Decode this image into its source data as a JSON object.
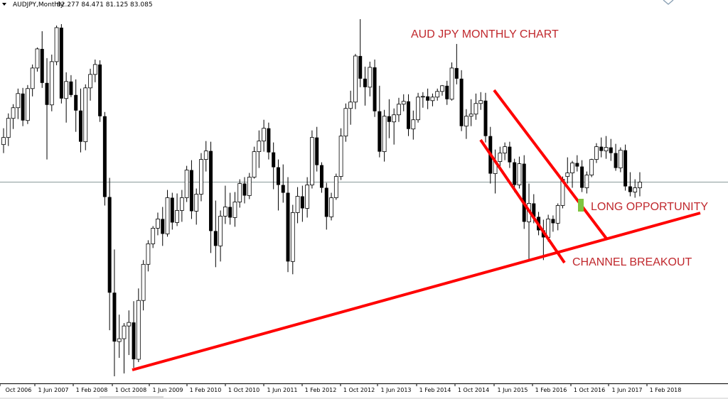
{
  "chart_data": {
    "type": "candlestick",
    "symbol_label": "AUDJPY,Monthly",
    "ohlc_label": "82.277 84.471 81.125 83.085",
    "title": "AUD JPY MONTHLY CHART",
    "annotations": [
      "LONG OPPORTUNITY",
      "CHANNEL BREAKOUT"
    ],
    "x_ticks": [
      "Oct 2006",
      "1 Jun 2007",
      "1 Feb 2008",
      "1 Oct 2008",
      "1 Jun 2009",
      "1 Feb 2010",
      "1 Oct 2010",
      "1 Jun 2011",
      "1 Feb 2012",
      "1 Oct 2012",
      "1 Jun 2013",
      "1 Feb 2014",
      "1 Oct 2014",
      "1 Jun 2015",
      "1 Feb 2016",
      "1 Oct 2016",
      "1 Jun 2017",
      "1 Feb 2018"
    ],
    "y_range": [
      55,
      107
    ],
    "reference_line": 83.1,
    "candles": [
      [
        88.4,
        90.7,
        87.2,
        89.4
      ],
      [
        89.4,
        92.8,
        88.2,
        92.1
      ],
      [
        92.1,
        94.1,
        90.6,
        93.6
      ],
      [
        93.6,
        96.3,
        92.0,
        95.6
      ],
      [
        95.6,
        96.4,
        91.0,
        91.8
      ],
      [
        91.8,
        96.8,
        91.3,
        96.3
      ],
      [
        96.3,
        99.7,
        95.2,
        99.2
      ],
      [
        99.2,
        102.1,
        98.7,
        101.9
      ],
      [
        101.9,
        104.4,
        96.4,
        97.1
      ],
      [
        97.1,
        100.6,
        86.3,
        94.0
      ],
      [
        94.0,
        101.1,
        93.1,
        100.1
      ],
      [
        100.1,
        105.2,
        99.6,
        104.9
      ],
      [
        104.9,
        105.4,
        94.2,
        94.9
      ],
      [
        94.9,
        98.6,
        91.5,
        97.3
      ],
      [
        97.3,
        98.2,
        95.1,
        95.4
      ],
      [
        95.4,
        97.6,
        90.2,
        93.2
      ],
      [
        93.2,
        96.3,
        87.3,
        88.8
      ],
      [
        88.8,
        96.9,
        87.6,
        96.4
      ],
      [
        96.4,
        99.1,
        94.6,
        98.3
      ],
      [
        98.3,
        100.4,
        97.2,
        99.7
      ],
      [
        99.7,
        100.3,
        91.6,
        92.4
      ],
      [
        92.4,
        93.0,
        79.8,
        81.0
      ],
      [
        81.0,
        83.7,
        62.2,
        67.5
      ],
      [
        67.5,
        73.6,
        55.7,
        60.6
      ],
      [
        60.6,
        64.4,
        58.3,
        61.0
      ],
      [
        61.0,
        63.2,
        56.1,
        62.8
      ],
      [
        62.8,
        65.0,
        58.7,
        63.3
      ],
      [
        63.3,
        66.3,
        56.9,
        58.1
      ],
      [
        58.1,
        68.1,
        57.7,
        66.4
      ],
      [
        66.4,
        72.1,
        65.0,
        71.5
      ],
      [
        71.5,
        74.9,
        70.5,
        74.4
      ],
      [
        74.4,
        76.9,
        73.8,
        76.6
      ],
      [
        76.6,
        78.8,
        75.6,
        77.9
      ],
      [
        77.9,
        79.6,
        74.1,
        75.8
      ],
      [
        75.8,
        82.0,
        75.4,
        80.9
      ],
      [
        80.9,
        81.6,
        76.4,
        77.4
      ],
      [
        77.4,
        81.5,
        76.9,
        79.1
      ],
      [
        79.1,
        82.0,
        77.5,
        80.9
      ],
      [
        80.9,
        85.4,
        80.3,
        84.8
      ],
      [
        84.8,
        86.2,
        77.9,
        79.0
      ],
      [
        79.0,
        82.2,
        77.1,
        81.4
      ],
      [
        81.4,
        87.2,
        80.4,
        86.3
      ],
      [
        86.3,
        88.9,
        84.6,
        87.5
      ],
      [
        87.5,
        88.8,
        73.1,
        76.2
      ],
      [
        76.2,
        80.5,
        71.1,
        74.1
      ],
      [
        74.1,
        79.1,
        71.9,
        78.3
      ],
      [
        78.3,
        82.6,
        77.2,
        79.6
      ],
      [
        79.6,
        81.6,
        77.1,
        78.1
      ],
      [
        78.1,
        81.7,
        76.8,
        80.3
      ],
      [
        80.3,
        83.5,
        79.5,
        82.9
      ],
      [
        82.9,
        83.8,
        80.1,
        81.2
      ],
      [
        81.2,
        84.4,
        80.7,
        83.8
      ],
      [
        83.8,
        88.1,
        83.6,
        87.4
      ],
      [
        87.4,
        90.4,
        85.1,
        88.9
      ],
      [
        88.9,
        91.9,
        87.4,
        90.7
      ],
      [
        90.7,
        91.5,
        86.3,
        87.3
      ],
      [
        87.3,
        88.7,
        82.1,
        85.2
      ],
      [
        85.2,
        86.3,
        79.1,
        82.7
      ],
      [
        82.7,
        85.6,
        80.2,
        81.6
      ],
      [
        81.6,
        83.8,
        70.4,
        71.9
      ],
      [
        71.9,
        79.9,
        70.1,
        78.8
      ],
      [
        78.8,
        82.4,
        77.3,
        81.1
      ],
      [
        81.1,
        82.6,
        77.5,
        79.4
      ],
      [
        79.4,
        83.8,
        78.1,
        82.7
      ],
      [
        82.7,
        90.4,
        82.2,
        89.4
      ],
      [
        89.4,
        90.9,
        84.6,
        85.5
      ],
      [
        85.5,
        85.9,
        81.6,
        82.3
      ],
      [
        82.3,
        83.0,
        76.4,
        78.2
      ],
      [
        78.2,
        81.6,
        77.7,
        80.9
      ],
      [
        80.9,
        84.3,
        80.6,
        83.9
      ],
      [
        83.9,
        90.7,
        83.4,
        89.6
      ],
      [
        89.6,
        94.2,
        88.8,
        93.5
      ],
      [
        93.5,
        96.0,
        91.2,
        94.4
      ],
      [
        94.4,
        101.2,
        93.4,
        100.9
      ],
      [
        100.9,
        106.1,
        96.5,
        97.7
      ],
      [
        97.7,
        99.4,
        93.9,
        96.5
      ],
      [
        96.5,
        100.1,
        95.2,
        99.3
      ],
      [
        99.3,
        100.4,
        92.3,
        93.1
      ],
      [
        93.1,
        96.7,
        86.6,
        87.4
      ],
      [
        87.4,
        93.3,
        86.0,
        92.4
      ],
      [
        92.4,
        94.8,
        89.3,
        91.6
      ],
      [
        91.6,
        93.5,
        88.4,
        92.6
      ],
      [
        92.6,
        95.0,
        91.6,
        94.1
      ],
      [
        94.1,
        95.5,
        93.1,
        94.5
      ],
      [
        94.5,
        95.5,
        89.6,
        90.6
      ],
      [
        90.6,
        93.2,
        89.1,
        91.9
      ],
      [
        91.9,
        95.7,
        91.5,
        95.1
      ],
      [
        95.1,
        95.8,
        93.6,
        95.2
      ],
      [
        95.2,
        96.3,
        93.4,
        94.6
      ],
      [
        94.6,
        95.6,
        93.8,
        95.1
      ],
      [
        95.1,
        96.3,
        94.6,
        95.9
      ],
      [
        95.9,
        96.8,
        95.3,
        96.7
      ],
      [
        96.7,
        97.4,
        94.0,
        94.8
      ],
      [
        94.8,
        100.0,
        94.6,
        99.2
      ],
      [
        99.2,
        102.6,
        96.9,
        97.7
      ],
      [
        97.7,
        98.9,
        90.3,
        91.0
      ],
      [
        91.0,
        93.4,
        89.2,
        92.4
      ],
      [
        92.4,
        94.8,
        91.0,
        92.7
      ],
      [
        92.7,
        95.6,
        91.9,
        94.2
      ],
      [
        94.2,
        95.8,
        93.3,
        94.6
      ],
      [
        94.6,
        95.7,
        88.7,
        89.6
      ],
      [
        89.6,
        90.9,
        82.9,
        84.3
      ],
      [
        84.3,
        87.7,
        81.5,
        86.0
      ],
      [
        86.0,
        88.1,
        85.0,
        87.2
      ],
      [
        87.2,
        88.7,
        86.2,
        88.1
      ],
      [
        88.1,
        88.8,
        85.1,
        85.9
      ],
      [
        85.9,
        86.4,
        81.7,
        82.7
      ],
      [
        82.7,
        86.7,
        82.2,
        85.7
      ],
      [
        85.7,
        86.9,
        76.5,
        77.5
      ],
      [
        77.5,
        82.9,
        72.2,
        80.1
      ],
      [
        80.1,
        81.4,
        77.3,
        78.2
      ],
      [
        78.2,
        78.9,
        75.6,
        76.3
      ],
      [
        76.3,
        77.8,
        72.1,
        75.3
      ],
      [
        75.3,
        78.5,
        74.7,
        77.9
      ],
      [
        77.9,
        78.4,
        76.1,
        77.3
      ],
      [
        77.3,
        80.1,
        76.3,
        79.8
      ],
      [
        79.8,
        83.9,
        79.4,
        83.5
      ],
      [
        83.9,
        86.6,
        82.9,
        84.4
      ],
      [
        84.4,
        86.1,
        82.3,
        85.8
      ],
      [
        85.8,
        86.9,
        84.6,
        85.3
      ],
      [
        85.3,
        86.2,
        81.7,
        82.3
      ],
      [
        82.3,
        84.6,
        81.5,
        84.1
      ],
      [
        84.1,
        86.4,
        83.8,
        86.3
      ],
      [
        86.3,
        88.6,
        85.8,
        88.1
      ],
      [
        88.1,
        89.4,
        86.6,
        87.5
      ],
      [
        87.5,
        89.6,
        86.4,
        88.0
      ],
      [
        88.0,
        89.2,
        86.1,
        87.2
      ],
      [
        87.2,
        88.5,
        84.7,
        85.1
      ],
      [
        85.1,
        88.0,
        84.5,
        87.6
      ],
      [
        87.6,
        88.4,
        81.9,
        82.5
      ],
      [
        82.5,
        84.5,
        81.1,
        81.7
      ],
      [
        81.7,
        83.5,
        80.9,
        82.3
      ],
      [
        82.3,
        84.5,
        81.1,
        83.1
      ]
    ]
  }
}
